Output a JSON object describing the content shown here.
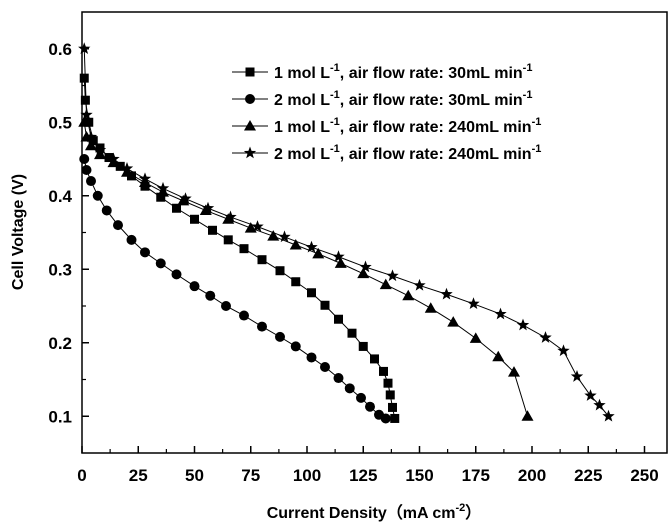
{
  "chart_data": {
    "type": "line",
    "xlabel": "Current Density（mA cm",
    "xlabel_sup": "-2",
    "xlabel_end": "）",
    "ylabel": "Cell Voltage (V)",
    "xlim": [
      0,
      260
    ],
    "ylim": [
      0.05,
      0.65
    ],
    "x_ticks": [
      0,
      25,
      50,
      75,
      100,
      125,
      150,
      175,
      200,
      225,
      250
    ],
    "y_ticks": [
      0.1,
      0.2,
      0.3,
      0.4,
      0.5,
      0.6
    ],
    "legend_position": "top-right",
    "series": [
      {
        "name_parts": [
          "1 mol L",
          "-1",
          ",  air flow rate: 30mL min",
          "-1"
        ],
        "marker": "square",
        "x": [
          1,
          1.5,
          3,
          5,
          8,
          12,
          17,
          22,
          28,
          35,
          42,
          50,
          58,
          65,
          72,
          80,
          88,
          95,
          102,
          108,
          114,
          120,
          125,
          130,
          134,
          136,
          137,
          138,
          139
        ],
        "y": [
          0.56,
          0.53,
          0.5,
          0.475,
          0.465,
          0.452,
          0.44,
          0.427,
          0.413,
          0.398,
          0.383,
          0.368,
          0.353,
          0.34,
          0.328,
          0.313,
          0.298,
          0.283,
          0.268,
          0.251,
          0.232,
          0.213,
          0.195,
          0.178,
          0.161,
          0.145,
          0.129,
          0.112,
          0.097
        ]
      },
      {
        "name_parts": [
          "2 mol L",
          "-1",
          ",  air flow rate: 30mL min",
          "-1"
        ],
        "marker": "circle",
        "x": [
          1,
          2,
          4,
          7,
          11,
          16,
          22,
          28,
          35,
          42,
          50,
          57,
          64,
          72,
          80,
          88,
          95,
          102,
          108,
          114,
          119,
          124,
          128,
          132,
          135
        ],
        "y": [
          0.45,
          0.435,
          0.42,
          0.4,
          0.38,
          0.36,
          0.34,
          0.323,
          0.308,
          0.293,
          0.277,
          0.264,
          0.25,
          0.237,
          0.222,
          0.208,
          0.195,
          0.18,
          0.167,
          0.152,
          0.138,
          0.125,
          0.113,
          0.102,
          0.097
        ]
      },
      {
        "name_parts": [
          "1 mol L",
          "-1",
          ",  air flow rate: 240mL min",
          "-1"
        ],
        "marker": "triangle",
        "x": [
          1,
          2,
          4,
          8,
          14,
          20,
          28,
          36,
          45,
          55,
          65,
          75,
          85,
          95,
          105,
          115,
          125,
          135,
          145,
          155,
          165,
          175,
          185,
          192,
          198
        ],
        "y": [
          0.5,
          0.48,
          0.468,
          0.456,
          0.445,
          0.432,
          0.418,
          0.405,
          0.393,
          0.38,
          0.368,
          0.356,
          0.345,
          0.333,
          0.321,
          0.308,
          0.294,
          0.279,
          0.264,
          0.247,
          0.228,
          0.206,
          0.181,
          0.16,
          0.1
        ]
      },
      {
        "name_parts": [
          "2 mol L",
          "-1",
          ",  air flow rate: 240mL min",
          "-1"
        ],
        "marker": "star",
        "x": [
          1,
          2,
          4,
          8,
          14,
          20,
          28,
          36,
          46,
          56,
          66,
          78,
          90,
          102,
          114,
          126,
          138,
          150,
          162,
          174,
          186,
          196,
          206,
          214,
          220,
          226,
          230,
          234
        ],
        "y": [
          0.6,
          0.51,
          0.48,
          0.462,
          0.45,
          0.437,
          0.423,
          0.41,
          0.396,
          0.383,
          0.371,
          0.358,
          0.344,
          0.33,
          0.317,
          0.303,
          0.291,
          0.278,
          0.266,
          0.253,
          0.239,
          0.224,
          0.207,
          0.189,
          0.154,
          0.128,
          0.115,
          0.1
        ]
      }
    ]
  }
}
